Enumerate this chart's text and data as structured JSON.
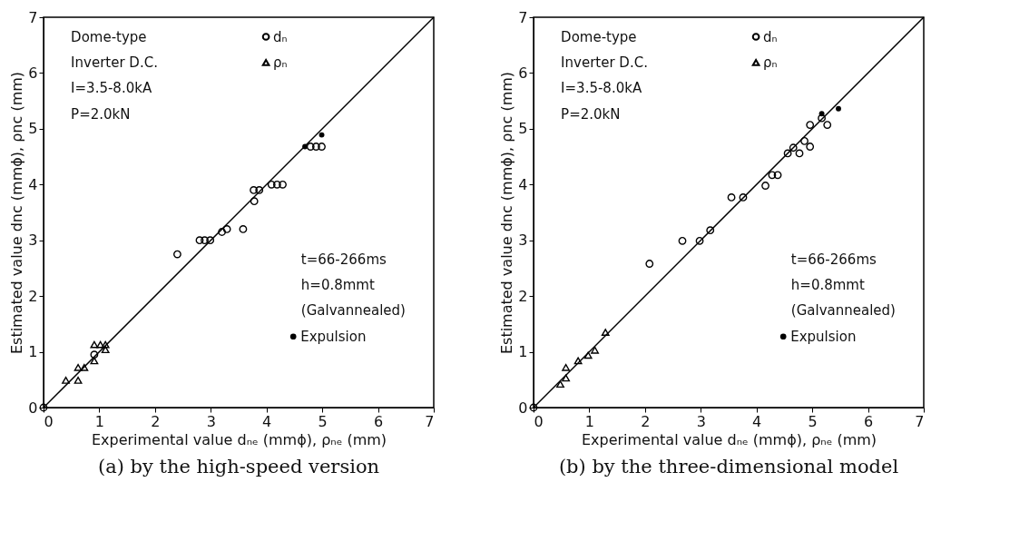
{
  "chart_data": [
    {
      "type": "scatter",
      "title": "(a) by the high-speed version",
      "xlabel": "Experimental value dₙₑ (mmϕ), ρₙₑ (mm)",
      "ylabel": "Estimated value dnc (mmϕ), ρnc (mm)",
      "xlim": [
        0,
        7
      ],
      "ylim": [
        0,
        7
      ],
      "xticks": [
        0,
        1,
        2,
        3,
        4,
        5,
        6,
        7
      ],
      "yticks": [
        0,
        1,
        2,
        3,
        4,
        5,
        6,
        7
      ],
      "grid": false,
      "legend": "top",
      "marker": "circle",
      "annotations": [
        "Dome-type",
        "Inverter D.C.",
        "I=3.5-8.0kA",
        "P=2.0kN",
        "t=66-266ms",
        "h=0.8mmt",
        "(Galvannealed)"
      ],
      "series": [
        {
          "type": "line",
          "line_style": "solid",
          "marker": "none",
          "color": "#000000",
          "x": [
            0,
            7
          ],
          "values": [
            0,
            7
          ]
        },
        {
          "name": "dₙ",
          "marker": "circle",
          "color": "#000000",
          "x": [
            0,
            0.91,
            2.4,
            2.8,
            2.89,
            2.99,
            3.2,
            3.29,
            3.58,
            3.78,
            3.77,
            3.87,
            4.09,
            4.19,
            4.29,
            4.79,
            4.89,
            4.99
          ],
          "values": [
            0,
            0.95,
            2.75,
            3.0,
            3.0,
            3.0,
            3.15,
            3.2,
            3.2,
            3.7,
            3.9,
            3.9,
            4.0,
            4.0,
            4.0,
            4.68,
            4.68,
            4.68
          ]
        },
        {
          "name": "ρₙ",
          "marker": "triangle",
          "color": "#000000",
          "x": [
            0.4,
            0.62,
            0.62,
            0.73,
            0.91,
            0.91,
            1.02,
            1.11,
            1.11
          ],
          "values": [
            0.49,
            0.49,
            0.72,
            0.72,
            0.84,
            1.13,
            1.13,
            1.13,
            1.04
          ]
        },
        {
          "name": "Expulsion",
          "color": "#000000",
          "x": [
            4.69,
            4.99
          ],
          "values": [
            4.68,
            4.89
          ]
        }
      ]
    },
    {
      "type": "scatter",
      "title": "(b) by the three-dimensional model",
      "xlabel": "Experimental value dₙₑ (mmϕ), ρₙₑ (mm)",
      "ylabel": "Estimated value dnc (mmϕ), ρnc (mm)",
      "xlim": [
        0,
        7
      ],
      "ylim": [
        0,
        7
      ],
      "xticks": [
        0,
        1,
        2,
        3,
        4,
        5,
        6,
        7
      ],
      "yticks": [
        0,
        1,
        2,
        3,
        4,
        5,
        6,
        7
      ],
      "grid": false,
      "legend": "top",
      "marker": "circle",
      "annotations": [
        "Dome-type",
        "Inverter D.C.",
        "I=3.5-8.0kA",
        "P=2.0kN",
        "t=66-266ms",
        "h=0.8mmt",
        "(Galvannealed)"
      ],
      "series": [
        {
          "type": "line",
          "line_style": "solid",
          "marker": "none",
          "color": "#000000",
          "x": [
            0,
            7
          ],
          "values": [
            0,
            7
          ]
        },
        {
          "name": "dₙ",
          "marker": "circle",
          "color": "#000000",
          "x": [
            0,
            2.08,
            2.67,
            2.98,
            3.17,
            3.55,
            3.76,
            4.16,
            4.28,
            4.38,
            4.56,
            4.66,
            4.77,
            4.86,
            4.96,
            4.96,
            5.27,
            5.17
          ],
          "values": [
            0,
            2.58,
            2.99,
            2.99,
            3.18,
            3.77,
            3.77,
            3.98,
            4.17,
            4.17,
            4.56,
            4.66,
            4.56,
            4.78,
            4.68,
            5.07,
            5.07,
            5.19
          ]
        },
        {
          "name": "ρₙ",
          "marker": "triangle",
          "color": "#000000",
          "x": [
            0.48,
            0.58,
            0.58,
            0.8,
            0.98,
            1.1,
            1.29
          ],
          "values": [
            0.42,
            0.53,
            0.72,
            0.84,
            0.94,
            1.03,
            1.35
          ]
        },
        {
          "name": "Expulsion",
          "color": "#000000",
          "x": [
            5.17,
            5.47
          ],
          "values": [
            5.27,
            5.36
          ]
        }
      ]
    }
  ]
}
